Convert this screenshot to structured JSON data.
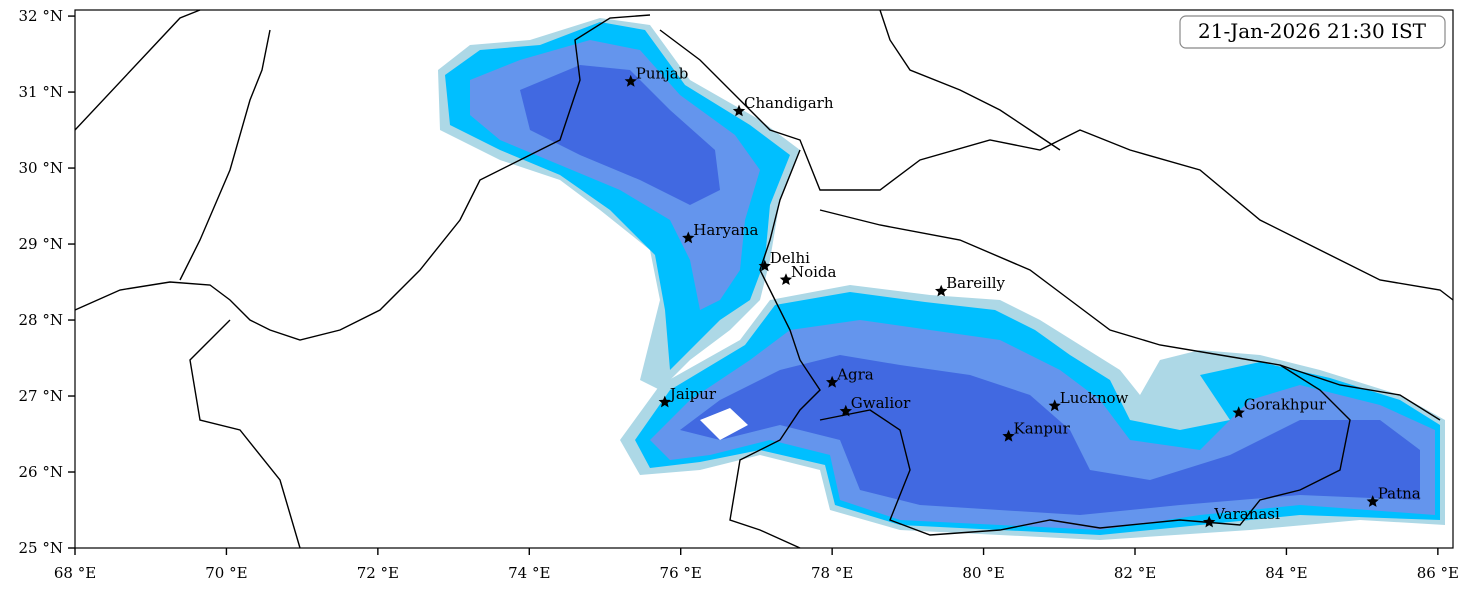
{
  "map": {
    "timestamp": "21-Jan-2026 21:30 IST",
    "xlim": [
      68,
      86.2
    ],
    "ylim": [
      25,
      32.08
    ],
    "xticks": [
      {
        "value": 68,
        "label": "68 °E"
      },
      {
        "value": 70,
        "label": "70 °E"
      },
      {
        "value": 72,
        "label": "72 °E"
      },
      {
        "value": 74,
        "label": "74 °E"
      },
      {
        "value": 76,
        "label": "76 °E"
      },
      {
        "value": 78,
        "label": "78 °E"
      },
      {
        "value": 80,
        "label": "80 °E"
      },
      {
        "value": 82,
        "label": "82 °E"
      },
      {
        "value": 84,
        "label": "84 °E"
      },
      {
        "value": 86,
        "label": "86 °E"
      }
    ],
    "yticks": [
      {
        "value": 25,
        "label": "25 °N"
      },
      {
        "value": 26,
        "label": "26 °N"
      },
      {
        "value": 27,
        "label": "27 °N"
      },
      {
        "value": 28,
        "label": "28 °N"
      },
      {
        "value": 29,
        "label": "29 °N"
      },
      {
        "value": 30,
        "label": "30 °N"
      },
      {
        "value": 31,
        "label": "31 °N"
      },
      {
        "value": 32,
        "label": "32 °N"
      }
    ],
    "cities": [
      {
        "name": "Punjab",
        "lon": 75.34,
        "lat": 31.14
      },
      {
        "name": "Chandigarh",
        "lon": 76.77,
        "lat": 30.75
      },
      {
        "name": "Haryana",
        "lon": 76.1,
        "lat": 29.08
      },
      {
        "name": "Delhi",
        "lon": 77.11,
        "lat": 28.71
      },
      {
        "name": "Noida",
        "lon": 77.39,
        "lat": 28.53
      },
      {
        "name": "Bareilly",
        "lon": 79.44,
        "lat": 28.38
      },
      {
        "name": "Jaipur",
        "lon": 75.79,
        "lat": 26.92
      },
      {
        "name": "Agra",
        "lon": 78.0,
        "lat": 27.18
      },
      {
        "name": "Gwalior",
        "lon": 78.18,
        "lat": 26.8
      },
      {
        "name": "Lucknow",
        "lon": 80.94,
        "lat": 26.87
      },
      {
        "name": "Kanpur",
        "lon": 80.33,
        "lat": 26.47
      },
      {
        "name": "Gorakhpur",
        "lon": 83.37,
        "lat": 26.78
      },
      {
        "name": "Varanasi",
        "lon": 82.98,
        "lat": 25.34
      },
      {
        "name": "Patna",
        "lon": 85.14,
        "lat": 25.61
      }
    ]
  }
}
